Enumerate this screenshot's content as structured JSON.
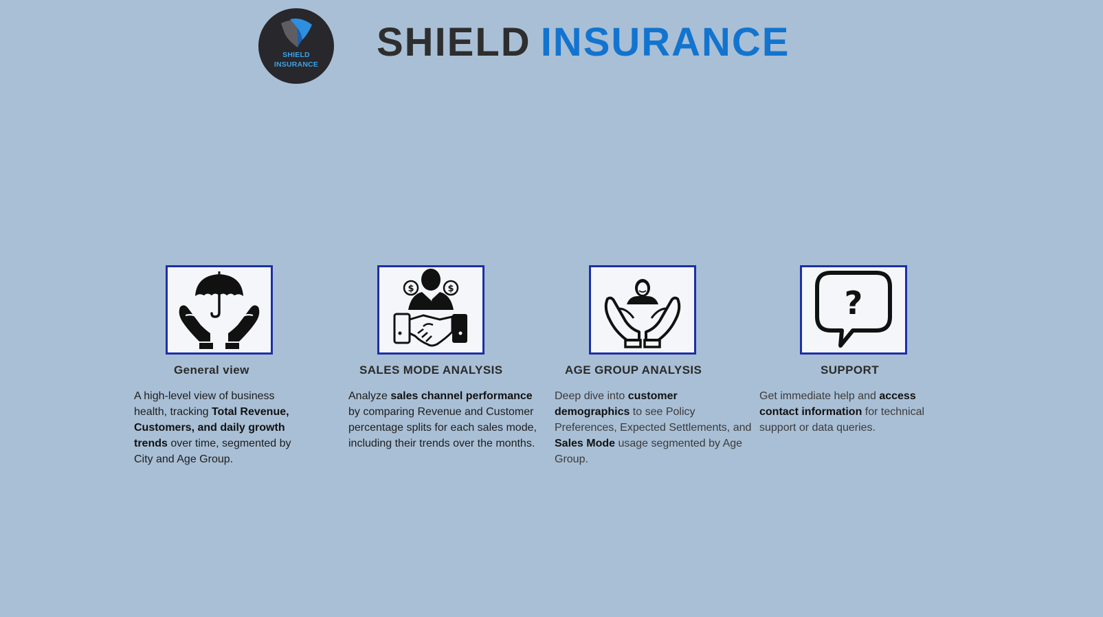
{
  "brand": {
    "logo_line1": "SHIELD",
    "logo_line2": "INSURANCE",
    "title_word1": "SHIELD",
    "title_word2": "INSURANCE",
    "accent_color": "#1274cf",
    "dark_color": "#2e2e2e"
  },
  "cards": [
    {
      "icon": "umbrella-hands-icon",
      "title": "General view",
      "desc": [
        {
          "t": "A high-level view of business health, tracking ",
          "b": false
        },
        {
          "t": "Total Revenue, Customers, and daily growth trends",
          "b": true
        },
        {
          "t": " over time, segmented by City and Age Group.",
          "b": false
        }
      ]
    },
    {
      "icon": "handshake-icon",
      "title": "SALES MODE ANALYSIS",
      "desc": [
        {
          "t": "Analyze ",
          "b": false
        },
        {
          "t": "sales channel performance",
          "b": true
        },
        {
          "t": " by comparing Revenue and Customer percentage splits for each sales mode, including their trends over the months.",
          "b": false
        }
      ]
    },
    {
      "icon": "person-in-hands-icon",
      "title": "AGE GROUP ANALYSIS",
      "desc": [
        {
          "t": "Deep dive into ",
          "b": false
        },
        {
          "t": "customer demographics",
          "b": true
        },
        {
          "t": " to see Policy Preferences, Expected Settlements, and ",
          "b": false
        },
        {
          "t": "Sales Mode",
          "b": true
        },
        {
          "t": " usage segmented by Age Group.",
          "b": false
        }
      ]
    },
    {
      "icon": "question-bubble-icon",
      "title": "SUPPORT",
      "desc": [
        {
          "t": "Get immediate help and ",
          "b": false
        },
        {
          "t": "access contact information",
          "b": true
        },
        {
          "t": " for technical support or data queries.",
          "b": false
        }
      ]
    }
  ],
  "colors": {
    "background": "#a9bfd5",
    "icon_border": "#1c2fa6",
    "icon_bg": "#f5f6f9"
  }
}
